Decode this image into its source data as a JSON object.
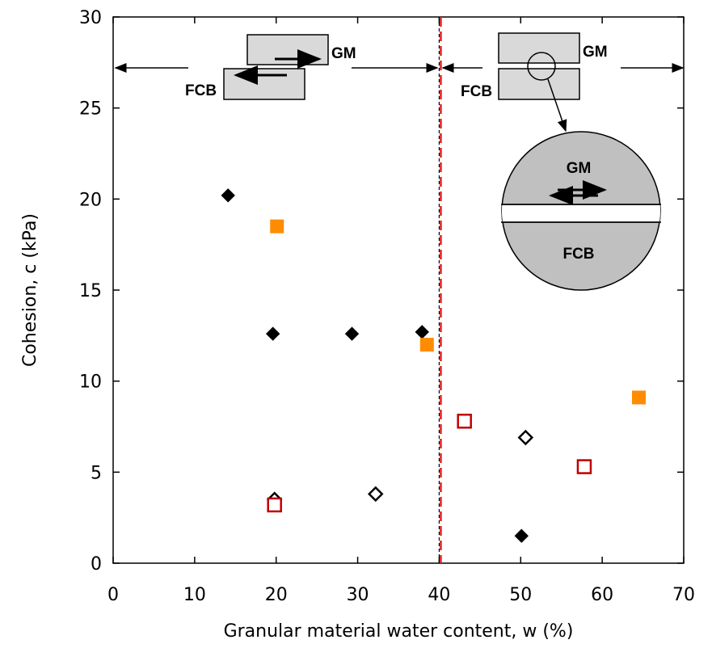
{
  "chart_data": {
    "type": "scatter",
    "x_label": "Granular material water content, w (%)",
    "y_label": "Cohesion, c (kPa)",
    "xlim": [
      0,
      70
    ],
    "xticks": [
      0,
      10,
      20,
      30,
      40,
      50,
      60,
      70
    ],
    "ylim": [
      0,
      30
    ],
    "yticks": [
      0,
      5,
      10,
      15,
      20,
      25,
      30
    ],
    "vline": 40,
    "series": [
      {
        "marker": "diamond",
        "filled": true,
        "color": "#000000",
        "x": [
          14.1,
          19.6,
          29.3,
          37.9,
          50.1
        ],
        "values": [
          20.2,
          12.6,
          12.6,
          12.7,
          1.5
        ]
      },
      {
        "marker": "square",
        "filled": true,
        "color": "#ff8c00",
        "x": [
          20.1,
          38.5,
          64.5
        ],
        "values": [
          18.5,
          12.0,
          9.1
        ]
      },
      {
        "marker": "diamond",
        "filled": false,
        "color": "#000000",
        "x": [
          19.8,
          32.2,
          50.6
        ],
        "values": [
          3.5,
          3.8,
          6.9
        ]
      },
      {
        "marker": "square",
        "filled": false,
        "color": "#c00000",
        "x": [
          19.8,
          43.1,
          57.8
        ],
        "values": [
          3.2,
          7.8,
          5.3
        ]
      }
    ],
    "annotations": [
      "GM",
      "FCB",
      "GM",
      "FCB",
      "GM",
      "FCB"
    ]
  }
}
